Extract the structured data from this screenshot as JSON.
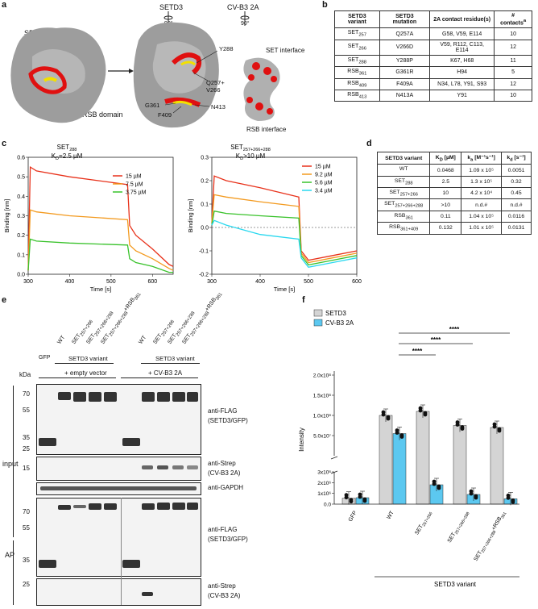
{
  "panels": {
    "a": "a",
    "b": "b",
    "c": "c",
    "d": "d",
    "e": "e",
    "f": "f"
  },
  "panel_a": {
    "set_domain": "SET domain",
    "rsb_domain": "RSB domain",
    "setd3": "SETD3",
    "cvb3": "CV-B3 2A",
    "rot1": "90°",
    "rot2": "90°",
    "residues": [
      "Y288",
      "Q257+",
      "V266",
      "G361",
      "N413",
      "F409"
    ],
    "set_interface": "SET interface",
    "rsb_interface": "RSB interface"
  },
  "table_b": {
    "headers": [
      "SETD3 variant",
      "SETD3 mutation",
      "2A contact residue(s)",
      "# contacts"
    ],
    "header_sup": "a",
    "rows": [
      {
        "v": "SET",
        "sub": "257",
        "m": "Q257A",
        "c": "G58, V59, E114",
        "n": "10"
      },
      {
        "v": "SET",
        "sub": "266",
        "m": "V266D",
        "c": "V59, R112, C113, E114",
        "n": "12"
      },
      {
        "v": "SET",
        "sub": "288",
        "m": "Y288P",
        "c": "K67, H68",
        "n": "11"
      },
      {
        "v": "RSB",
        "sub": "361",
        "m": "G361R",
        "c": "H94",
        "n": "5"
      },
      {
        "v": "RSB",
        "sub": "409",
        "m": "F409A",
        "c": "N34, L78, Y91, S93",
        "n": "12"
      },
      {
        "v": "RSB",
        "sub": "413",
        "m": "N413A",
        "c": "Y91",
        "n": "10"
      }
    ]
  },
  "chart_data": [
    {
      "type": "line",
      "title": "SET",
      "title_sub": "288",
      "kd": "K",
      "kd_sub": "D",
      "kd_val": "=2.5 µM",
      "xlabel": "Time [s]",
      "ylabel": "Binding [nm]",
      "xlim": [
        300,
        650
      ],
      "ylim": [
        0,
        0.6
      ],
      "xticks": [
        "300",
        "400",
        "500",
        "600"
      ],
      "yticks": [
        "0.0",
        "0.1",
        "0.2",
        "0.3",
        "0.4",
        "0.5",
        "0.6"
      ],
      "series": [
        {
          "name": "15 µM",
          "color": "#e8311a",
          "x": [
            300,
            305,
            320,
            400,
            540,
            545,
            560,
            600,
            640,
            650
          ],
          "y": [
            0.02,
            0.55,
            0.53,
            0.5,
            0.46,
            0.25,
            0.2,
            0.13,
            0.05,
            0.04
          ]
        },
        {
          "name": "7.5 µM",
          "color": "#f39a1f",
          "x": [
            300,
            305,
            320,
            400,
            540,
            545,
            560,
            600,
            640,
            650
          ],
          "y": [
            0.02,
            0.33,
            0.32,
            0.3,
            0.28,
            0.15,
            0.12,
            0.08,
            0.03,
            0.02
          ]
        },
        {
          "name": "3.75 µM",
          "color": "#39c22b",
          "x": [
            300,
            305,
            320,
            400,
            540,
            545,
            560,
            600,
            640,
            650
          ],
          "y": [
            0.02,
            0.18,
            0.17,
            0.16,
            0.15,
            0.08,
            0.06,
            0.04,
            0.01,
            0.01
          ]
        }
      ]
    },
    {
      "type": "line",
      "title": "SET",
      "title_sub": "257+266+288",
      "kd": "K",
      "kd_sub": "D",
      "kd_val": ">10 µM",
      "xlabel": "Time [s]",
      "ylabel": "Binding [nm]",
      "xlim": [
        300,
        600
      ],
      "ylim": [
        -0.2,
        0.3
      ],
      "xticks": [
        "300",
        "400",
        "500",
        "600"
      ],
      "yticks": [
        "-0.2",
        "-0.1",
        "0.0",
        "0.1",
        "0.2",
        "0.3"
      ],
      "series": [
        {
          "name": "15 µM",
          "color": "#e8311a",
          "x": [
            300,
            305,
            330,
            400,
            480,
            485,
            500,
            550,
            600
          ],
          "y": [
            0.02,
            0.22,
            0.2,
            0.17,
            0.13,
            -0.1,
            -0.14,
            -0.12,
            -0.1
          ]
        },
        {
          "name": "9.2 µM",
          "color": "#f39a1f",
          "x": [
            300,
            305,
            330,
            400,
            480,
            485,
            500,
            550,
            600
          ],
          "y": [
            0.02,
            0.14,
            0.13,
            0.11,
            0.09,
            -0.11,
            -0.15,
            -0.13,
            -0.11
          ]
        },
        {
          "name": "5.6 µM",
          "color": "#39c22b",
          "x": [
            300,
            305,
            330,
            400,
            480,
            485,
            500,
            550,
            600
          ],
          "y": [
            0.01,
            0.07,
            0.06,
            0.05,
            0.04,
            -0.12,
            -0.16,
            -0.14,
            -0.12
          ]
        },
        {
          "name": "3.4 µM",
          "color": "#29d8ef",
          "x": [
            300,
            305,
            330,
            400,
            480,
            485,
            500,
            550,
            600
          ],
          "y": [
            0.01,
            0.03,
            0.01,
            -0.03,
            -0.05,
            -0.13,
            -0.17,
            -0.15,
            -0.13
          ]
        }
      ]
    },
    {
      "type": "bar",
      "ylabel": "Intensity",
      "xlabel": "SETD3 variant",
      "categories": [
        "GFP",
        "WT",
        "SET257+266",
        "SET257+266+288",
        "SET257+266+288+RSB361"
      ],
      "cat_main": [
        "GFP",
        "WT",
        "SET",
        "SET",
        "SET"
      ],
      "cat_sub": [
        "",
        "",
        "257+266",
        "257+266+288",
        "257+266+288"
      ],
      "cat_suffix": [
        "",
        "",
        "",
        "",
        "+RSB"
      ],
      "cat_suffix_sub": [
        "",
        "",
        "",
        "",
        "361"
      ],
      "legend": [
        "SETD3",
        "CV-B3 2A"
      ],
      "sig": "****",
      "series": [
        {
          "name": "SETD3",
          "color": "#d4d4d4",
          "values": [
            550000.0,
            100000000.0,
            110000000.0,
            75000000.0,
            70000000.0
          ]
        },
        {
          "name": "CV-B3 2A",
          "color": "#5cc8f0",
          "values": [
            600000.0,
            55000000.0,
            1800000.0,
            900000.0,
            500000.0
          ]
        }
      ],
      "yticks_upper": [
        "5.0x10⁷",
        "1.0x10⁸",
        "1.5x10⁸",
        "2.0x10⁸"
      ],
      "yticks_lower": [
        "0.0",
        "1x10⁶",
        "2x10⁶",
        "3x10⁶"
      ]
    }
  ],
  "table_d": {
    "headers": [
      "SETD3 variant",
      "K",
      "k",
      "k"
    ],
    "header_subs": [
      "",
      "D",
      "a",
      "d"
    ],
    "header_units": [
      "",
      " [µM]",
      " [M⁻¹s⁻¹]",
      " [s⁻¹]"
    ],
    "rows": [
      {
        "v": "WT",
        "sub": "",
        "kd": "0.0468",
        "ka": "1.09 x 10⁵",
        "kdis": "0.0051"
      },
      {
        "v": "SET",
        "sub": "288",
        "kd": "2.5",
        "ka": "1.3 x 10⁵",
        "kdis": "0.32"
      },
      {
        "v": "SET",
        "sub": "257+266",
        "kd": "10",
        "ka": "4.2 x 10⁴",
        "kdis": "0.45"
      },
      {
        "v": "SET",
        "sub": "257+266+288",
        "kd": ">10",
        "ka": "n.d.#",
        "kdis": "n.d.#"
      },
      {
        "v": "RSB",
        "sub": "361",
        "kd": "0.11",
        "ka": "1.04 x 10⁵",
        "kdis": "0.0116"
      },
      {
        "v": "RSB",
        "sub": "361+409",
        "kd": "0.132",
        "ka": "1.01 x 10⁵",
        "kdis": "0.0131"
      }
    ]
  },
  "panel_e": {
    "lanes": [
      "GFP",
      "WT",
      "SET",
      "SET",
      "SET"
    ],
    "lane_subs": [
      "",
      "",
      "257+266",
      "257+266+288",
      "257+266+288"
    ],
    "lane_suffix": [
      "",
      "",
      "",
      "",
      "+RSB"
    ],
    "lane_suffix_sub": [
      "",
      "",
      "",
      "",
      "361"
    ],
    "variant": "SETD3 variant",
    "empty": "+ empty vector",
    "cvb3": "+ CV-B3 2A",
    "kda": "kDa",
    "input": "input",
    "ap": "AP",
    "mw_input": [
      "70",
      "55",
      "35",
      "25"
    ],
    "mw_strep": [
      "15"
    ],
    "mw_ap": [
      "70",
      "55",
      "35",
      "25"
    ],
    "ab1": "anti-FLAG",
    "ab1b": "(SETD3/GFP)",
    "ab2": "anti-Strep",
    "ab2b": "(CV-B3 2A)",
    "ab3": "anti-GAPDH",
    "ab4": "anti-FLAG",
    "ab4b": "(SETD3/GFP)",
    "ab5": "anti-Strep",
    "ab5b": "(CV-B3 2A)"
  }
}
